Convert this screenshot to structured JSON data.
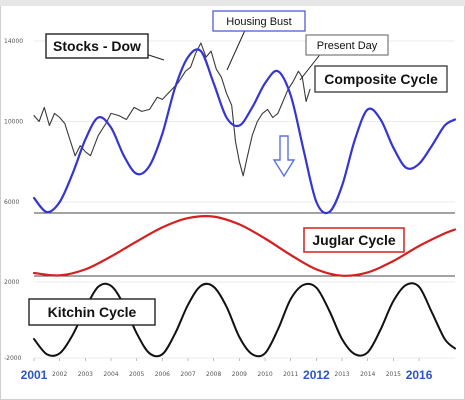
{
  "colors": {
    "stocks": "#3a3a3a",
    "composite": "#3535d4",
    "juglar": "#d42020",
    "kitchin": "#111111",
    "box_stocks": "#222222",
    "box_housing": "#3f4fd0",
    "box_present": "#777777",
    "box_composite": "#444444",
    "box_juglar": "#d42020",
    "box_kitchin": "#222222",
    "arrow": "#5b72e0",
    "year_accent": "#2a56c6"
  },
  "icons": {
    "down_arrow": "down-arrow-icon"
  },
  "chart_data": [
    {
      "type": "line",
      "panel": "top",
      "yticks": [
        {
          "value": 14000,
          "label": "14000"
        },
        {
          "value": 10000,
          "label": "10000"
        },
        {
          "value": 6000,
          "label": "6000"
        }
      ],
      "ylim": [
        6000,
        14000
      ],
      "annotations": [
        {
          "id": "stocks",
          "text": "Stocks - Dow"
        },
        {
          "id": "housing",
          "text": "Housing Bust"
        },
        {
          "id": "present",
          "text": "Present Day"
        },
        {
          "id": "composite",
          "text": "Composite Cycle"
        }
      ],
      "series": [
        {
          "name": "Stocks - Dow",
          "x": [
            2001.0,
            2001.2,
            2001.4,
            2001.6,
            2001.8,
            2002.0,
            2002.2,
            2002.4,
            2002.6,
            2002.8,
            2003.0,
            2003.2,
            2003.5,
            2003.8,
            2004.0,
            2004.3,
            2004.6,
            2004.9,
            2005.2,
            2005.5,
            2005.8,
            2006.0,
            2006.3,
            2006.6,
            2006.9,
            2007.1,
            2007.3,
            2007.5,
            2007.7,
            2007.9,
            2008.1,
            2008.3,
            2008.5,
            2008.7,
            2008.85,
            2009.0,
            2009.15,
            2009.3,
            2009.5,
            2009.7,
            2009.9,
            2010.1,
            2010.3,
            2010.5,
            2010.7,
            2010.9,
            2011.1,
            2011.3,
            2011.45,
            2011.6,
            2011.75
          ],
          "values": [
            10300,
            10000,
            10700,
            9800,
            10400,
            10200,
            9900,
            9100,
            8300,
            8800,
            8500,
            8300,
            9300,
            9900,
            10400,
            10300,
            10100,
            10700,
            10500,
            10600,
            11200,
            11100,
            11500,
            11900,
            12500,
            12700,
            13400,
            13900,
            13200,
            13500,
            12600,
            12200,
            11400,
            10800,
            9000,
            8000,
            7300,
            8200,
            9300,
            10000,
            10400,
            10600,
            10200,
            10400,
            11000,
            11600,
            12000,
            12500,
            12200,
            11000,
            11600
          ]
        },
        {
          "name": "Composite Cycle",
          "x": [
            2001.0,
            2001.5,
            2002.0,
            2002.5,
            2003.0,
            2003.5,
            2004.0,
            2004.5,
            2005.0,
            2005.5,
            2006.0,
            2006.5,
            2007.0,
            2007.5,
            2008.0,
            2008.5,
            2009.0,
            2009.5,
            2010.0,
            2010.5,
            2011.0,
            2011.5,
            2012.0,
            2012.5,
            2013.0,
            2013.5,
            2014.0,
            2014.5,
            2015.0,
            2015.5,
            2016.0,
            2016.5,
            2017.0,
            2017.4
          ],
          "values": [
            6200,
            5500,
            6000,
            7400,
            9100,
            10200,
            9700,
            8300,
            7400,
            7800,
            9400,
            11700,
            13200,
            13500,
            11900,
            10200,
            9800,
            10700,
            11900,
            12500,
            11300,
            8600,
            6000,
            5500,
            6800,
            9100,
            10600,
            10100,
            8700,
            7700,
            7900,
            8800,
            9800,
            10100
          ]
        }
      ]
    },
    {
      "type": "line",
      "panel": "middle",
      "ylim": [
        -1,
        1
      ],
      "annotations": [
        {
          "id": "juglar",
          "text": "Juglar Cycle"
        }
      ],
      "series": [
        {
          "name": "Juglar Cycle",
          "x": [
            2001.0,
            2002.0,
            2003.0,
            2004.0,
            2005.0,
            2006.0,
            2007.0,
            2008.0,
            2009.0,
            2010.0,
            2011.0,
            2012.0,
            2013.0,
            2014.0,
            2015.0,
            2016.0,
            2017.0,
            2017.4
          ],
          "values": [
            -0.9,
            -0.98,
            -0.78,
            -0.35,
            0.15,
            0.62,
            0.93,
            0.98,
            0.72,
            0.25,
            -0.3,
            -0.78,
            -0.99,
            -0.88,
            -0.5,
            0.0,
            0.42,
            0.55
          ]
        }
      ]
    },
    {
      "type": "line",
      "panel": "bottom",
      "yticks": [
        {
          "value": 2000,
          "label": "2000"
        },
        {
          "value": -2000,
          "label": "-2000"
        }
      ],
      "ylim": [
        -2000,
        2000
      ],
      "annotations": [
        {
          "id": "kitchin",
          "text": "Kitchin Cycle"
        }
      ],
      "series": [
        {
          "name": "Kitchin Cycle",
          "x": [
            2001.0,
            2001.5,
            2002.0,
            2002.5,
            2003.0,
            2003.5,
            2004.0,
            2004.5,
            2005.0,
            2005.5,
            2006.0,
            2006.5,
            2007.0,
            2007.5,
            2008.0,
            2008.5,
            2009.0,
            2009.5,
            2010.0,
            2010.5,
            2011.0,
            2011.5,
            2012.0,
            2012.5,
            2013.0,
            2013.5,
            2014.0,
            2014.5,
            2015.0,
            2015.5,
            2016.0,
            2016.5,
            2017.0,
            2017.4
          ],
          "values": [
            -1000,
            -1800,
            -1750,
            -800,
            600,
            1750,
            1800,
            800,
            -700,
            -1750,
            -1800,
            -700,
            800,
            1800,
            1750,
            700,
            -900,
            -1800,
            -1750,
            -500,
            1100,
            1850,
            1700,
            500,
            -1000,
            -1800,
            -1700,
            -500,
            1000,
            1850,
            1750,
            400,
            -1000,
            -1500
          ]
        }
      ]
    }
  ],
  "x_axis": {
    "ticks": [
      {
        "year": 2001,
        "label": "2001",
        "big": true
      },
      {
        "year": 2002,
        "label": "2002",
        "big": false
      },
      {
        "year": 2003,
        "label": "2003",
        "big": false
      },
      {
        "year": 2004,
        "label": "2004",
        "big": false
      },
      {
        "year": 2005,
        "label": "2005",
        "big": false
      },
      {
        "year": 2006,
        "label": "2006",
        "big": false
      },
      {
        "year": 2007,
        "label": "2007",
        "big": false
      },
      {
        "year": 2008,
        "label": "2008",
        "big": false
      },
      {
        "year": 2009,
        "label": "2009",
        "big": false
      },
      {
        "year": 2010,
        "label": "2010",
        "big": false
      },
      {
        "year": 2011,
        "label": "2011",
        "big": false
      },
      {
        "year": 2012,
        "label": "2012",
        "big": true
      },
      {
        "year": 2013,
        "label": "2013",
        "big": false
      },
      {
        "year": 2014,
        "label": "2014",
        "big": false
      },
      {
        "year": 2015,
        "label": "2015",
        "big": false
      },
      {
        "year": 2016,
        "label": "2016",
        "big": true
      }
    ]
  }
}
